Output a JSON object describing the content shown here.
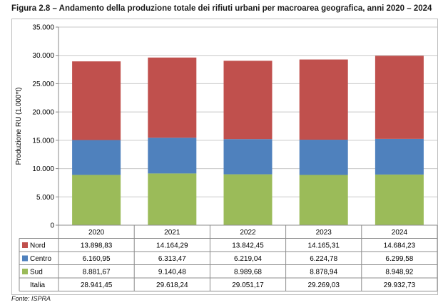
{
  "figure": {
    "title": "Figura 2.8 – Andamento della produzione totale dei rifiuti urbani per macroarea geografica, anni 2020 – 2024",
    "source": "Fonte: ISPRA"
  },
  "chart_data": {
    "type": "bar",
    "stacked": true,
    "title": "",
    "xlabel": "",
    "ylabel": "Produzione RU (1.000*t)",
    "ylim": [
      0,
      35000
    ],
    "yticks": [
      0,
      5000,
      10000,
      15000,
      20000,
      25000,
      30000,
      35000
    ],
    "ytick_labels": [
      "0",
      "5.000",
      "10.000",
      "15.000",
      "20.000",
      "25.000",
      "30.000",
      "35.000"
    ],
    "grid": true,
    "legend": "table-left",
    "categories": [
      "2020",
      "2021",
      "2022",
      "2023",
      "2024"
    ],
    "series": [
      {
        "name": "Sud",
        "color": "#9bbb59",
        "values": [
          8881.67,
          9140.48,
          8989.68,
          8878.94,
          8948.92
        ],
        "labels": [
          "8.881,67",
          "9.140,48",
          "8.989,68",
          "8.878,94",
          "8.948,92"
        ]
      },
      {
        "name": "Centro",
        "color": "#4f81bd",
        "values": [
          6160.95,
          6313.47,
          6219.04,
          6224.78,
          6299.58
        ],
        "labels": [
          "6.160,95",
          "6.313,47",
          "6.219,04",
          "6.224,78",
          "6.299,58"
        ]
      },
      {
        "name": "Nord",
        "color": "#c0504d",
        "values": [
          13898.83,
          14164.29,
          13842.45,
          14165.31,
          14684.23
        ],
        "labels": [
          "13.898,83",
          "14.164,29",
          "13.842,45",
          "14.165,31",
          "14.684,23"
        ]
      }
    ],
    "table_rows": [
      "Nord",
      "Centro",
      "Sud"
    ],
    "total": {
      "name": "Italia",
      "values": [
        28941.45,
        29618.24,
        29051.17,
        29269.03,
        29932.73
      ],
      "labels": [
        "28.941,45",
        "29.618,24",
        "29.051,17",
        "29.269,03",
        "29.932,73"
      ]
    }
  }
}
